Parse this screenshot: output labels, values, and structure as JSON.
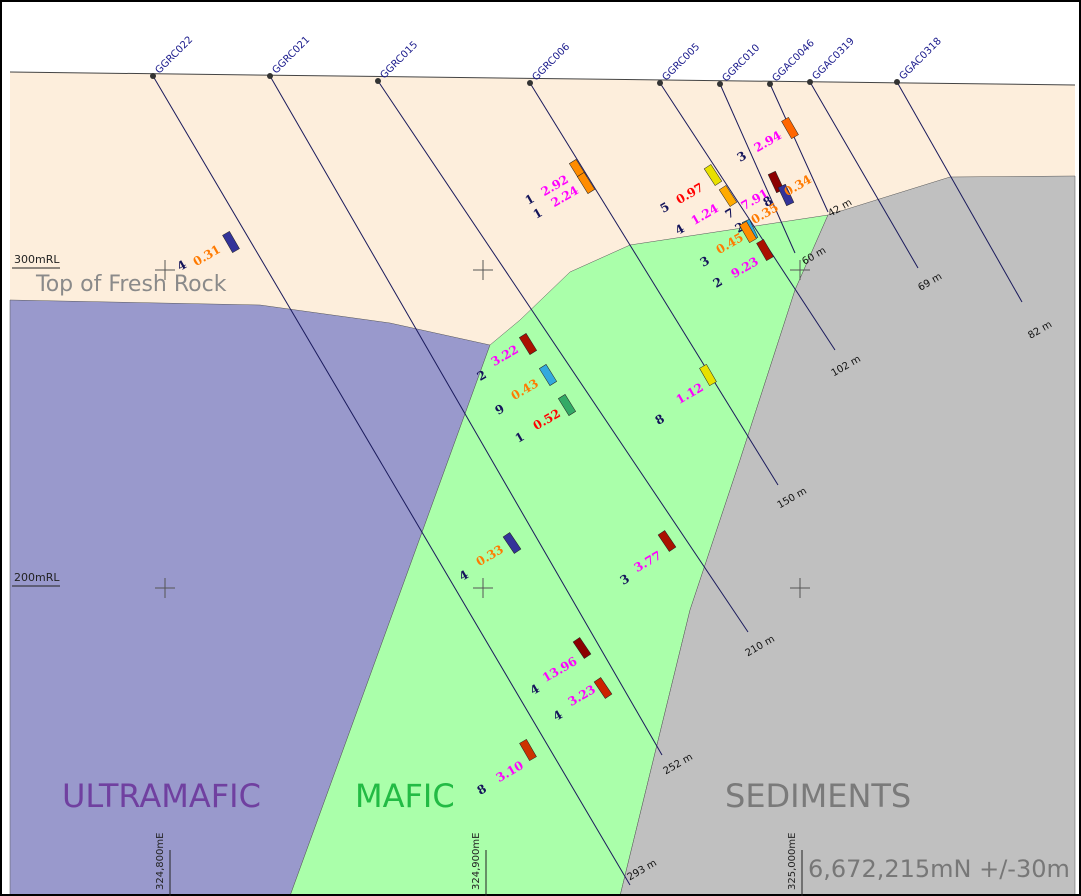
{
  "section": {
    "holes": [
      {
        "name": "GGRC022",
        "depth": "293 m"
      },
      {
        "name": "GGRC021",
        "depth": "252 m"
      },
      {
        "name": "GGRC015",
        "depth": "210 m"
      },
      {
        "name": "GGRC006",
        "depth": "150 m"
      },
      {
        "name": "GGRC005",
        "depth": "102 m"
      },
      {
        "name": "GGRC010",
        "depth": "60 m"
      },
      {
        "name": "GGAC0046",
        "depth": "42 m"
      },
      {
        "name": "GGAC0319",
        "depth": "69 m"
      },
      {
        "name": "GGAC0318",
        "depth": "82 m"
      }
    ],
    "intercepts": [
      {
        "width": "4",
        "grade": "0.31"
      },
      {
        "width": "1",
        "grade": "2.92"
      },
      {
        "width": "1",
        "grade": "2.24"
      },
      {
        "width": "5",
        "grade": "0.97"
      },
      {
        "width": "4",
        "grade": "1.24"
      },
      {
        "width": "7",
        "grade": "7.91"
      },
      {
        "width": "2",
        "grade": "0.35"
      },
      {
        "width": "8",
        "grade": "0.34"
      },
      {
        "width": "3",
        "grade": "2.94"
      },
      {
        "width": "3",
        "grade": "0.45"
      },
      {
        "width": "2",
        "grade": "9.23"
      },
      {
        "width": "2",
        "grade": "3.22"
      },
      {
        "width": "9",
        "grade": "0.43"
      },
      {
        "width": "1",
        "grade": "0.52"
      },
      {
        "width": "8",
        "grade": "1.12"
      },
      {
        "width": "3",
        "grade": "3.77"
      },
      {
        "width": "4",
        "grade": "0.33"
      },
      {
        "width": "4",
        "grade": "13.96"
      },
      {
        "width": "4",
        "grade": "3.23"
      },
      {
        "width": "8",
        "grade": "3.10"
      }
    ],
    "rl_labels": [
      "300mRL",
      "200mRL"
    ],
    "boundary_label": "Top of Fresh Rock",
    "units": [
      "ULTRAMAFIC",
      "MAFIC",
      "SEDIMENTS"
    ],
    "eastings": [
      "324,800mE",
      "324,900mE",
      "325,000mE"
    ],
    "northing": "6,672,215mN +/-30m"
  }
}
